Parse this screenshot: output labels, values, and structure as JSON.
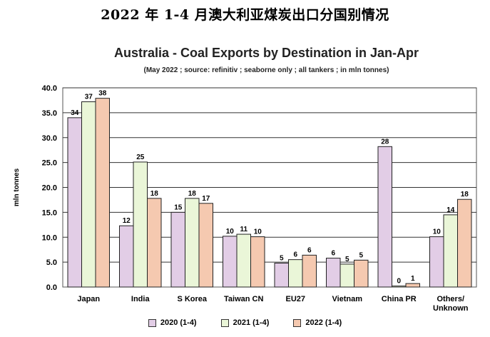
{
  "page_heading": "2022 年 1-4 月澳大利亚煤炭出口分国别情况",
  "chart_data": {
    "type": "bar",
    "title": "Australia - Coal Exports by Destination in Jan-Apr",
    "subtitle": "(May 2022 ; source: refinitiv ; seaborne only ; all tankers ; in mln tonnes)",
    "xlabel": "",
    "ylabel": "mln tonnes",
    "ylim": [
      0,
      40
    ],
    "yticks": [
      "0.0",
      "5.0",
      "10.0",
      "15.0",
      "20.0",
      "25.0",
      "30.0",
      "35.0",
      "40.0"
    ],
    "grid": true,
    "legend_position": "bottom",
    "categories": [
      "Japan",
      "India",
      "S Korea",
      "Taiwan CN",
      "EU27",
      "Vietnam",
      "China PR",
      "Others/\nUnknown"
    ],
    "series": [
      {
        "name": "2020 (1-4)",
        "color": "#e2cde6",
        "values": [
          34,
          12.3,
          15,
          10.2,
          4.8,
          5.8,
          28.2,
          10.1
        ],
        "labels": [
          "34",
          "12",
          "15",
          "10",
          "5",
          "6",
          "28",
          "10"
        ]
      },
      {
        "name": "2021 (1-4)",
        "color": "#eaf6d8",
        "values": [
          37.2,
          25.1,
          17.8,
          10.6,
          5.5,
          4.6,
          0.2,
          14.5
        ],
        "labels": [
          "37",
          "25",
          "18",
          "11",
          "6",
          "5",
          "0",
          "14"
        ]
      },
      {
        "name": "2022 (1-4)",
        "color": "#f5c9b0",
        "values": [
          37.9,
          17.8,
          16.8,
          10.1,
          6.4,
          5.4,
          0.7,
          17.6
        ],
        "labels": [
          "38",
          "18",
          "17",
          "10",
          "6",
          "5",
          "1",
          "18"
        ]
      }
    ]
  }
}
